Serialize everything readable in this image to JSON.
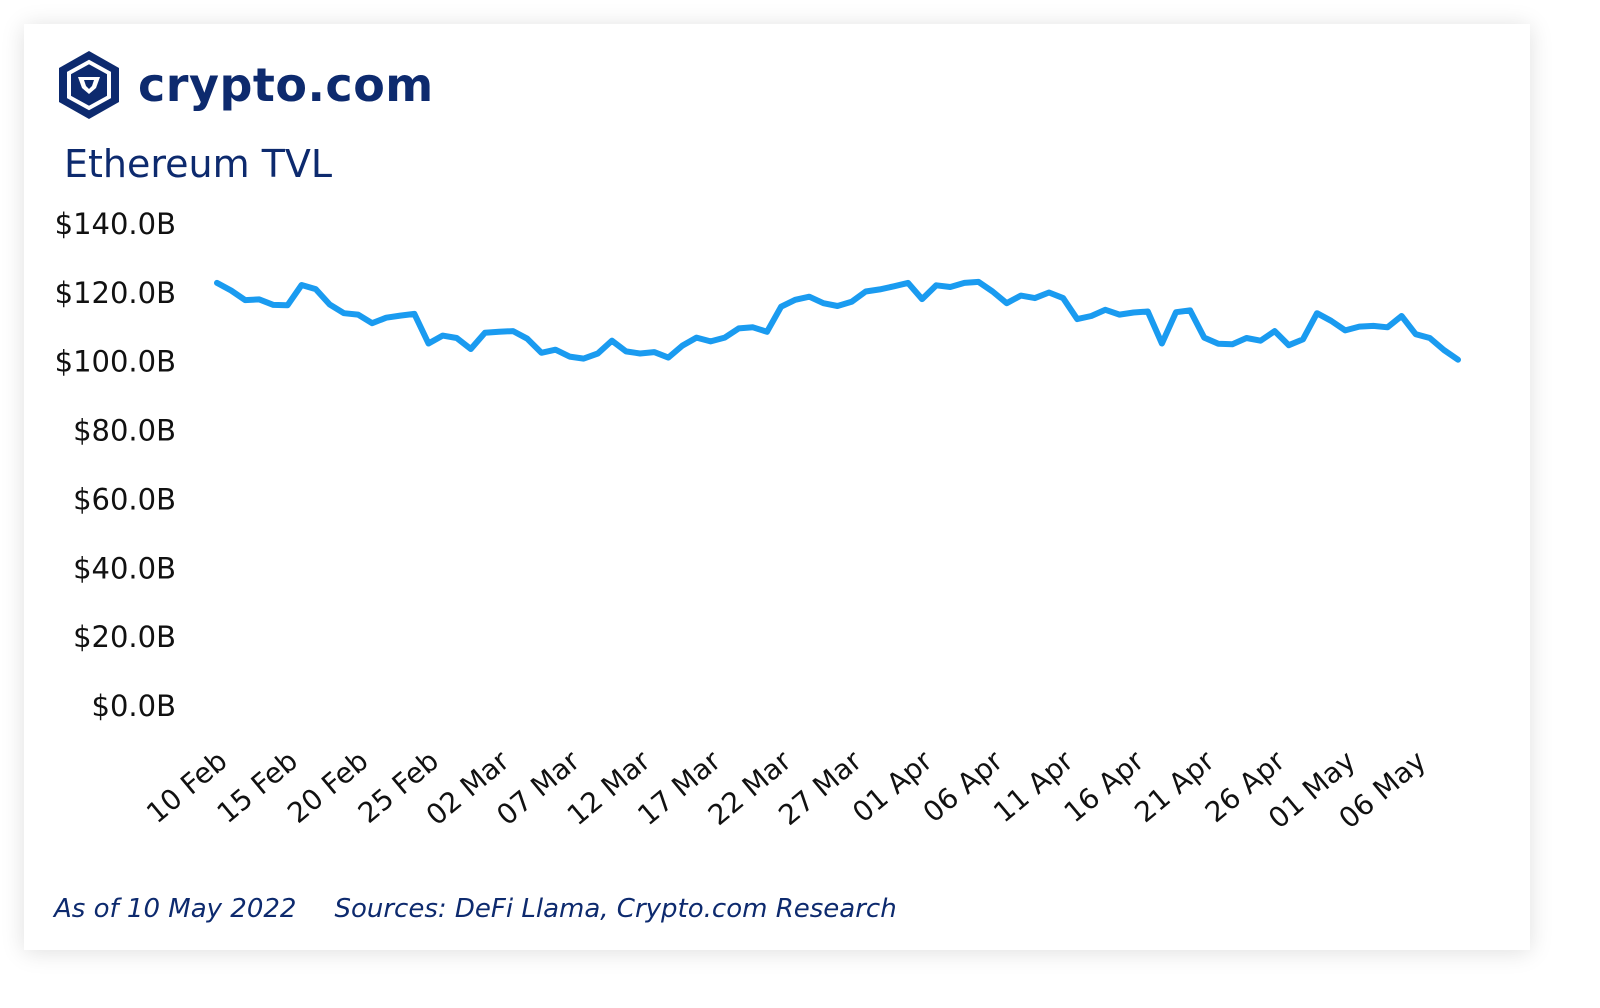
{
  "brand": {
    "name": "crypto.com",
    "logo_icon": "crypto-com-lion-shield-icon",
    "color": "#0d2a6e"
  },
  "footer": {
    "as_of": "As of 10 May 2022",
    "sources": "Sources: DeFi Llama, Crypto.com Research"
  },
  "chart_data": {
    "type": "line",
    "title": "Ethereum TVL",
    "xlabel": "",
    "ylabel": "",
    "ylim": [
      0,
      140
    ],
    "y_ticks": [
      0,
      20,
      40,
      60,
      80,
      100,
      120,
      140
    ],
    "y_tick_labels": [
      "$0.0B",
      "$20.0B",
      "$40.0B",
      "$60.0B",
      "$80.0B",
      "$100.0B",
      "$120.0B",
      "$140.0B"
    ],
    "x_tick_labels": [
      "10 Feb",
      "15 Feb",
      "20 Feb",
      "25 Feb",
      "02 Mar",
      "07 Mar",
      "12 Mar",
      "17 Mar",
      "22 Mar",
      "27 Mar",
      "01 Apr",
      "06 Apr",
      "11 Apr",
      "16 Apr",
      "21 Apr",
      "26 Apr",
      "01 May",
      "06 May"
    ],
    "x_tick_day_index": [
      0,
      5,
      10,
      15,
      20,
      25,
      30,
      35,
      40,
      45,
      50,
      55,
      60,
      65,
      70,
      75,
      80,
      85
    ],
    "grid": false,
    "legend": "none",
    "line_color": "#1a9bf0",
    "series": [
      {
        "values": [
          122.6,
          120.4,
          117.6,
          117.8,
          116.2,
          116.1,
          122.0,
          120.8,
          116.3,
          113.8,
          113.4,
          110.9,
          112.5,
          113.1,
          113.6,
          105.0,
          107.3,
          106.6,
          103.4,
          108.1,
          108.4,
          108.6,
          106.4,
          102.3,
          103.2,
          101.2,
          100.6,
          102.1,
          105.8,
          102.7,
          102.1,
          102.5,
          100.9,
          104.4,
          106.7,
          105.6,
          106.7,
          109.4,
          109.7,
          108.4,
          115.7,
          117.7,
          118.6,
          116.7,
          115.9,
          117.1,
          120.1,
          120.7,
          121.6,
          122.6,
          117.9,
          121.9,
          121.4,
          122.6,
          122.9,
          120.1,
          116.7,
          118.9,
          118.2,
          119.8,
          118.2,
          112.1,
          113.0,
          114.8,
          113.4,
          114.0,
          114.3,
          105.0,
          114.1,
          114.6,
          106.7,
          104.9,
          104.8,
          106.6,
          105.8,
          108.6,
          104.5,
          106.2,
          113.8,
          111.6,
          108.8,
          109.9,
          110.1,
          109.7,
          113.0,
          107.7,
          106.6,
          103.1,
          100.3
        ]
      }
    ]
  }
}
